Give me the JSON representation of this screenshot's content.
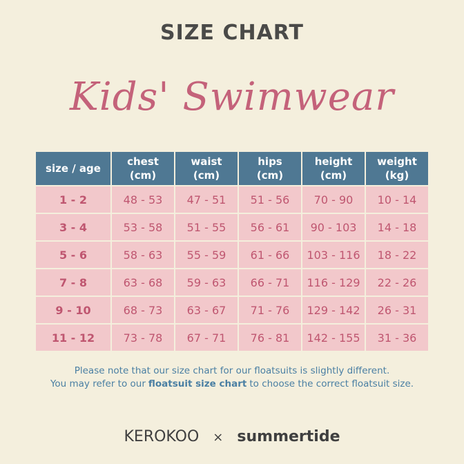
{
  "header": {
    "title": "SIZE CHART",
    "subtitle": "Kids' Swimwear"
  },
  "table": {
    "headers": [
      {
        "label": "size / age"
      },
      {
        "label": "chest",
        "unit": "(cm)"
      },
      {
        "label": "waist",
        "unit": "(cm)"
      },
      {
        "label": "hips",
        "unit": "(cm)"
      },
      {
        "label": "height",
        "unit": "(cm)"
      },
      {
        "label": "weight",
        "unit": "(kg)"
      }
    ],
    "rows": [
      [
        "1 - 2",
        "48 - 53",
        "47 - 51",
        "51 - 56",
        "70 - 90",
        "10 - 14"
      ],
      [
        "3 - 4",
        "53 - 58",
        "51 - 55",
        "56 - 61",
        "90 - 103",
        "14 - 18"
      ],
      [
        "5 - 6",
        "58 - 63",
        "55 - 59",
        "61 - 66",
        "103 - 116",
        "18 - 22"
      ],
      [
        "7 - 8",
        "63 - 68",
        "59 - 63",
        "66 - 71",
        "116 - 129",
        "22 - 26"
      ],
      [
        "9 - 10",
        "68 - 73",
        "63 - 67",
        "71 - 76",
        "129 - 142",
        "26 - 31"
      ],
      [
        "11 - 12",
        "73 - 78",
        "67 - 71",
        "76 - 81",
        "142 - 155",
        "31 - 36"
      ]
    ]
  },
  "note": {
    "line1": "Please note that our size chart for our floatsuits is slightly different.",
    "line2": [
      "You may refer to our",
      "floatsuit size chart",
      "to choose the correct floatsuit size."
    ]
  },
  "footer": {
    "brand1": "KEROKOO",
    "separator": "×",
    "brand2": "summertide"
  }
}
